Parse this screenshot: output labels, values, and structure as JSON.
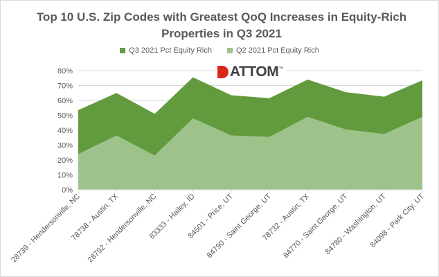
{
  "chart_data": {
    "type": "area",
    "title": "Top 10 U.S. Zip Codes with Greatest QoQ Increases in Equity-Rich Properties in Q3 2021",
    "categories": [
      "28739 - Hendersonville, NC",
      "78738 - Austin, TX",
      "28792 - Hendersonville, NC",
      "83333 - Hailey, ID",
      "84501 - Price, UT",
      "84790 - Saint George, UT",
      "78732 - Austin, TX",
      "84770 - Saint George, UT",
      "84780 - Washington, UT",
      "84098 - Park City, UT"
    ],
    "series": [
      {
        "name": "Q3 2021 Pct Equity Rich",
        "color": "#629a3e",
        "values": [
          53.5,
          65,
          51,
          75.5,
          63.5,
          61.5,
          74,
          65.5,
          62.5,
          73.5
        ]
      },
      {
        "name": "Q2 2021 Pct Equity Rich",
        "color": "#9dc38b",
        "values": [
          24,
          36.5,
          23,
          48,
          36.5,
          35.5,
          49,
          40.5,
          37.5,
          49
        ]
      }
    ],
    "ylim": [
      0,
      80
    ],
    "yticks": [
      "0%",
      "10%",
      "20%",
      "30%",
      "40%",
      "50%",
      "60%",
      "70%",
      "80%"
    ],
    "grid": true,
    "legend": "top",
    "xlabel": "",
    "ylabel": ""
  },
  "logo": {
    "text": "ATTOM",
    "tm": "™"
  }
}
